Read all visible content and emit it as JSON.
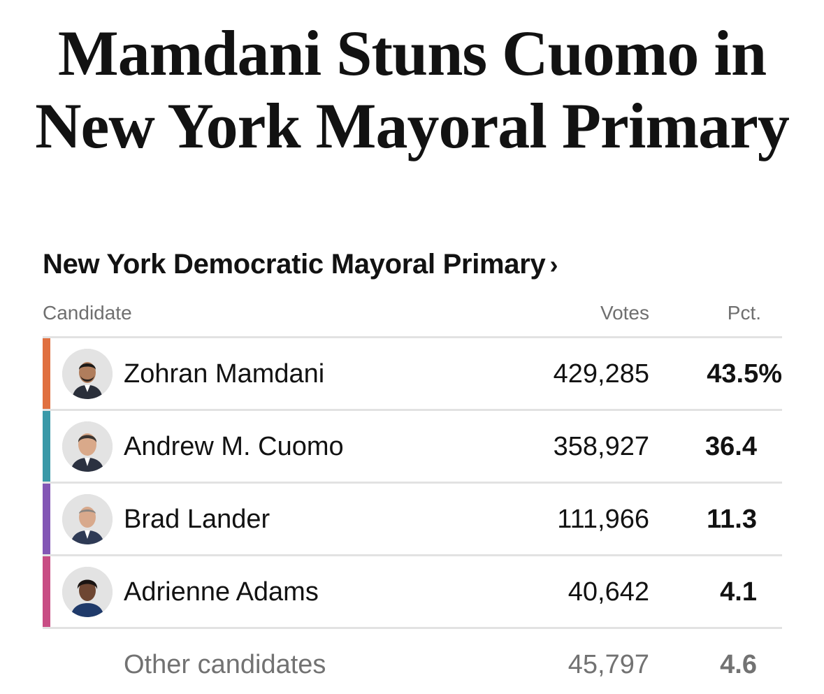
{
  "headline": {
    "line1": "Mamdani Stuns Cuomo in",
    "line2": "New York Mayoral Primary"
  },
  "race": {
    "title": "New York Democratic Mayoral Primary",
    "chevron": "›"
  },
  "table": {
    "headers": {
      "candidate": "Candidate",
      "votes": "Votes",
      "pct": "Pct."
    },
    "rows": [
      {
        "name": "Zohran Mamdani",
        "votes": "429,285",
        "pct": "43.5%",
        "color": "#e07040",
        "avatar_icon": "candidate-photo"
      },
      {
        "name": "Andrew M. Cuomo",
        "votes": "358,927",
        "pct": "36.4",
        "color": "#3a99a8",
        "avatar_icon": "candidate-photo"
      },
      {
        "name": "Brad Lander",
        "votes": "111,966",
        "pct": "11.3",
        "color": "#8356b5",
        "avatar_icon": "candidate-photo"
      },
      {
        "name": "Adrienne Adams",
        "votes": "40,642",
        "pct": "4.1",
        "color": "#c84d84",
        "avatar_icon": "candidate-photo"
      }
    ],
    "other": {
      "name": "Other candidates",
      "votes": "45,797",
      "pct": "4.6"
    }
  }
}
